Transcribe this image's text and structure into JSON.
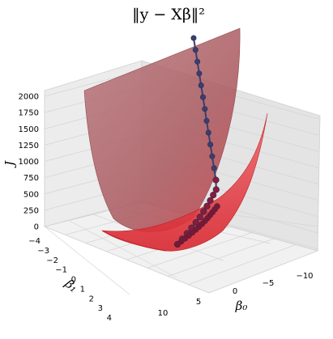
{
  "chart_data": {
    "type": "surface3d",
    "title": "‖y − Xβ‖²",
    "xlabel": "β₀",
    "ylabel": "β₁",
    "zlabel": "J",
    "xticks": [
      "−10",
      "−5",
      "0",
      "5",
      "10"
    ],
    "yticks": [
      "−4",
      "−3",
      "−2",
      "−1",
      "0",
      "1",
      "2",
      "3",
      "4"
    ],
    "zticks": [
      "0",
      "250",
      "500",
      "750",
      "1000",
      "1250",
      "1500",
      "1750",
      "2000"
    ],
    "zlim": [
      0,
      2000
    ],
    "grid": true,
    "surfaces": [
      {
        "color": "#b06a6f",
        "description_color": "muted red (back surface)"
      },
      {
        "color": "#e84a4f",
        "description_color": "bright red (front surface)"
      }
    ],
    "descent_path": {
      "color": "#3b3e6e",
      "points_J": [
        1880,
        1640,
        1450,
        1330,
        1160,
        1010,
        890,
        780,
        720,
        680,
        650,
        620,
        580,
        520,
        440,
        360,
        290,
        230,
        190,
        160,
        140,
        120,
        110,
        100
      ]
    }
  }
}
